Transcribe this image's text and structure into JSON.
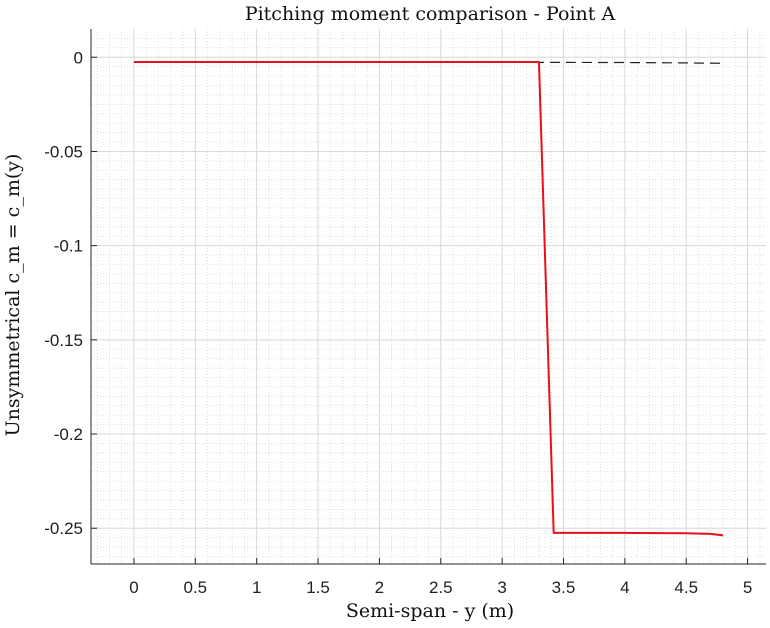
{
  "chart_data": {
    "type": "line",
    "title": "Pitching moment comparison - Point A",
    "xlabel": "Semi-span - y (m)",
    "ylabel": "Unsymmetrical c_m = c_m(y)",
    "xlim": [
      -0.35,
      5.15
    ],
    "ylim": [
      -0.269,
      0.015
    ],
    "x_ticks": [
      0,
      0.5,
      1,
      1.5,
      2,
      2.5,
      3,
      3.5,
      4,
      4.5,
      5
    ],
    "x_tick_labels": [
      "0",
      "0.5",
      "1",
      "1.5",
      "2",
      "2.5",
      "3",
      "3.5",
      "4",
      "4.5",
      "5"
    ],
    "y_ticks": [
      0,
      -0.05,
      -0.1,
      -0.15,
      -0.2,
      -0.25
    ],
    "y_tick_labels": [
      "0",
      "-0.05",
      "-0.1",
      "-0.15",
      "-0.2",
      "-0.25"
    ],
    "grid": true,
    "minor_grid": true,
    "series": [
      {
        "color": "#e8101a",
        "style": "solid",
        "x": [
          0,
          1,
          2,
          3,
          3.3,
          3.42,
          4.0,
          4.5,
          4.7,
          4.8
        ],
        "y": [
          -0.0025,
          -0.0025,
          -0.0025,
          -0.0025,
          -0.0025,
          -0.2525,
          -0.2525,
          -0.2527,
          -0.253,
          -0.2538
        ]
      },
      {
        "color": "#222222",
        "style": "dashed",
        "x": [
          0,
          1,
          2,
          3,
          3.3,
          4.0,
          4.5,
          4.8
        ],
        "y": [
          -0.0025,
          -0.0025,
          -0.0026,
          -0.0026,
          -0.0027,
          -0.0028,
          -0.003,
          -0.0032
        ]
      }
    ]
  }
}
